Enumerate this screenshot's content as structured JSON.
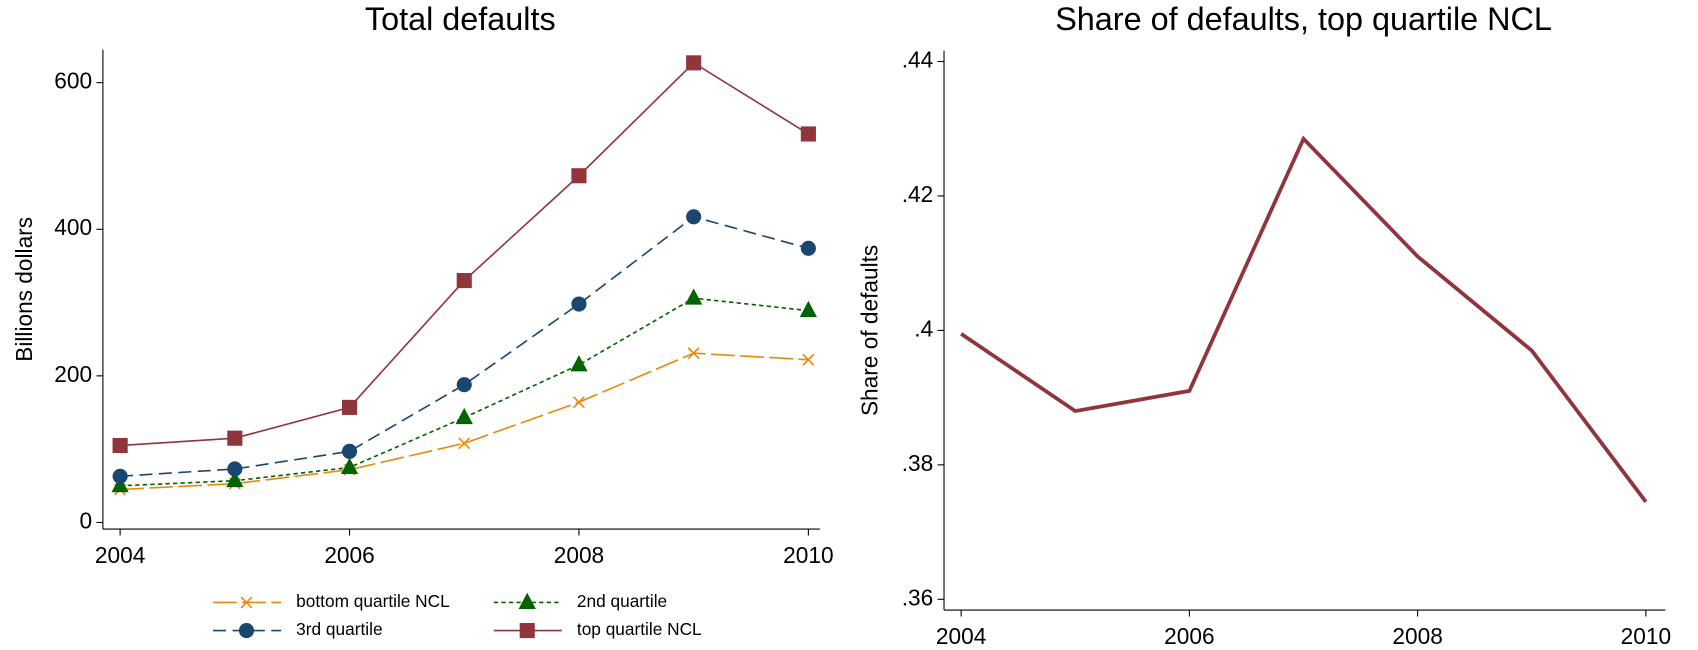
{
  "chart_data": [
    {
      "type": "line",
      "title": "Total defaults",
      "ylabel": "Billions dollars",
      "x": [
        2004,
        2005,
        2006,
        2007,
        2008,
        2009,
        2010
      ],
      "xlim": [
        2003.85,
        2010.1
      ],
      "xticks": [
        2004,
        2006,
        2008,
        2010
      ],
      "ylim": [
        -9,
        645
      ],
      "yticks": [
        0,
        200,
        400,
        600
      ],
      "series": [
        {
          "name": "bottom quartile NCL",
          "color": "#e8890c",
          "marker": "x",
          "dash": "22 5",
          "values": [
            45,
            53,
            72,
            108,
            164,
            231,
            222
          ]
        },
        {
          "name": "2nd quartile",
          "color": "#006400",
          "marker": "triangle",
          "dash": "4 3",
          "values": [
            50,
            57,
            75,
            143,
            215,
            306,
            289
          ]
        },
        {
          "name": "3rd quartile",
          "color": "#1a476f",
          "marker": "circle",
          "dash": "12 6",
          "values": [
            63,
            73,
            97,
            188,
            298,
            417,
            374
          ]
        },
        {
          "name": "top quartile NCL",
          "color": "#90353b",
          "marker": "square",
          "dash": "none",
          "values": [
            105,
            115,
            157,
            330,
            473,
            627,
            530
          ]
        }
      ]
    },
    {
      "type": "line",
      "title": "Share of defaults, top quartile NCL",
      "ylabel": "Share of defaults",
      "x": [
        2004,
        2005,
        2006,
        2007,
        2008,
        2009,
        2010
      ],
      "xlim": [
        2003.85,
        2010.17
      ],
      "xticks": [
        2004,
        2006,
        2008,
        2010
      ],
      "ylim": [
        0.3584,
        0.4416
      ],
      "yticks": [
        {
          "value": 0.36,
          "label": ".36"
        },
        {
          "value": 0.38,
          "label": ".38"
        },
        {
          "value": 0.4,
          "label": ".4"
        },
        {
          "value": 0.42,
          "label": ".42"
        },
        {
          "value": 0.44,
          "label": ".44"
        }
      ],
      "color": "#90353b",
      "values": [
        0.3995,
        0.388,
        0.391,
        0.4285,
        0.411,
        0.397,
        0.3745
      ]
    }
  ]
}
